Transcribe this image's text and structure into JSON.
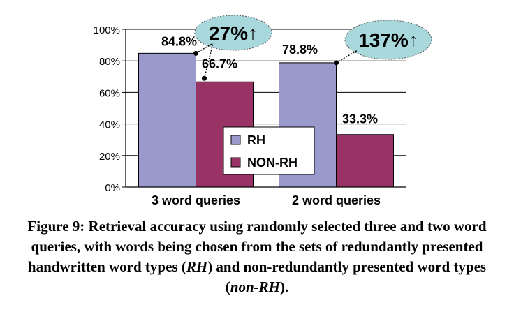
{
  "chart_data": {
    "type": "bar",
    "categories": [
      "3 word queries",
      "2 word queries"
    ],
    "series": [
      {
        "name": "RH",
        "values": [
          84.8,
          78.8
        ],
        "color": "#9999cc"
      },
      {
        "name": "NON-RH",
        "values": [
          66.7,
          33.3
        ],
        "color": "#993366"
      }
    ],
    "data_labels": [
      [
        "84.8%",
        "66.7%"
      ],
      [
        "78.8%",
        "33.3%"
      ]
    ],
    "ylim": [
      0,
      100
    ],
    "yticks": [
      "0%",
      "20%",
      "40%",
      "60%",
      "80%",
      "100%"
    ],
    "grid": true,
    "legend_position": "inside-center",
    "callouts": [
      "27%↑",
      "137%↑"
    ],
    "callout_color": "#a8d8dc"
  },
  "caption": {
    "part1": "Figure 9: Retrieval accuracy using randomly selected three and two word queries, with words being chosen from the sets of redundantly presented handwritten word types (",
    "rh": "RH",
    "part2": ") and non-redundantly presented word types (",
    "nonrh": "non-RH",
    "part3": ")."
  }
}
